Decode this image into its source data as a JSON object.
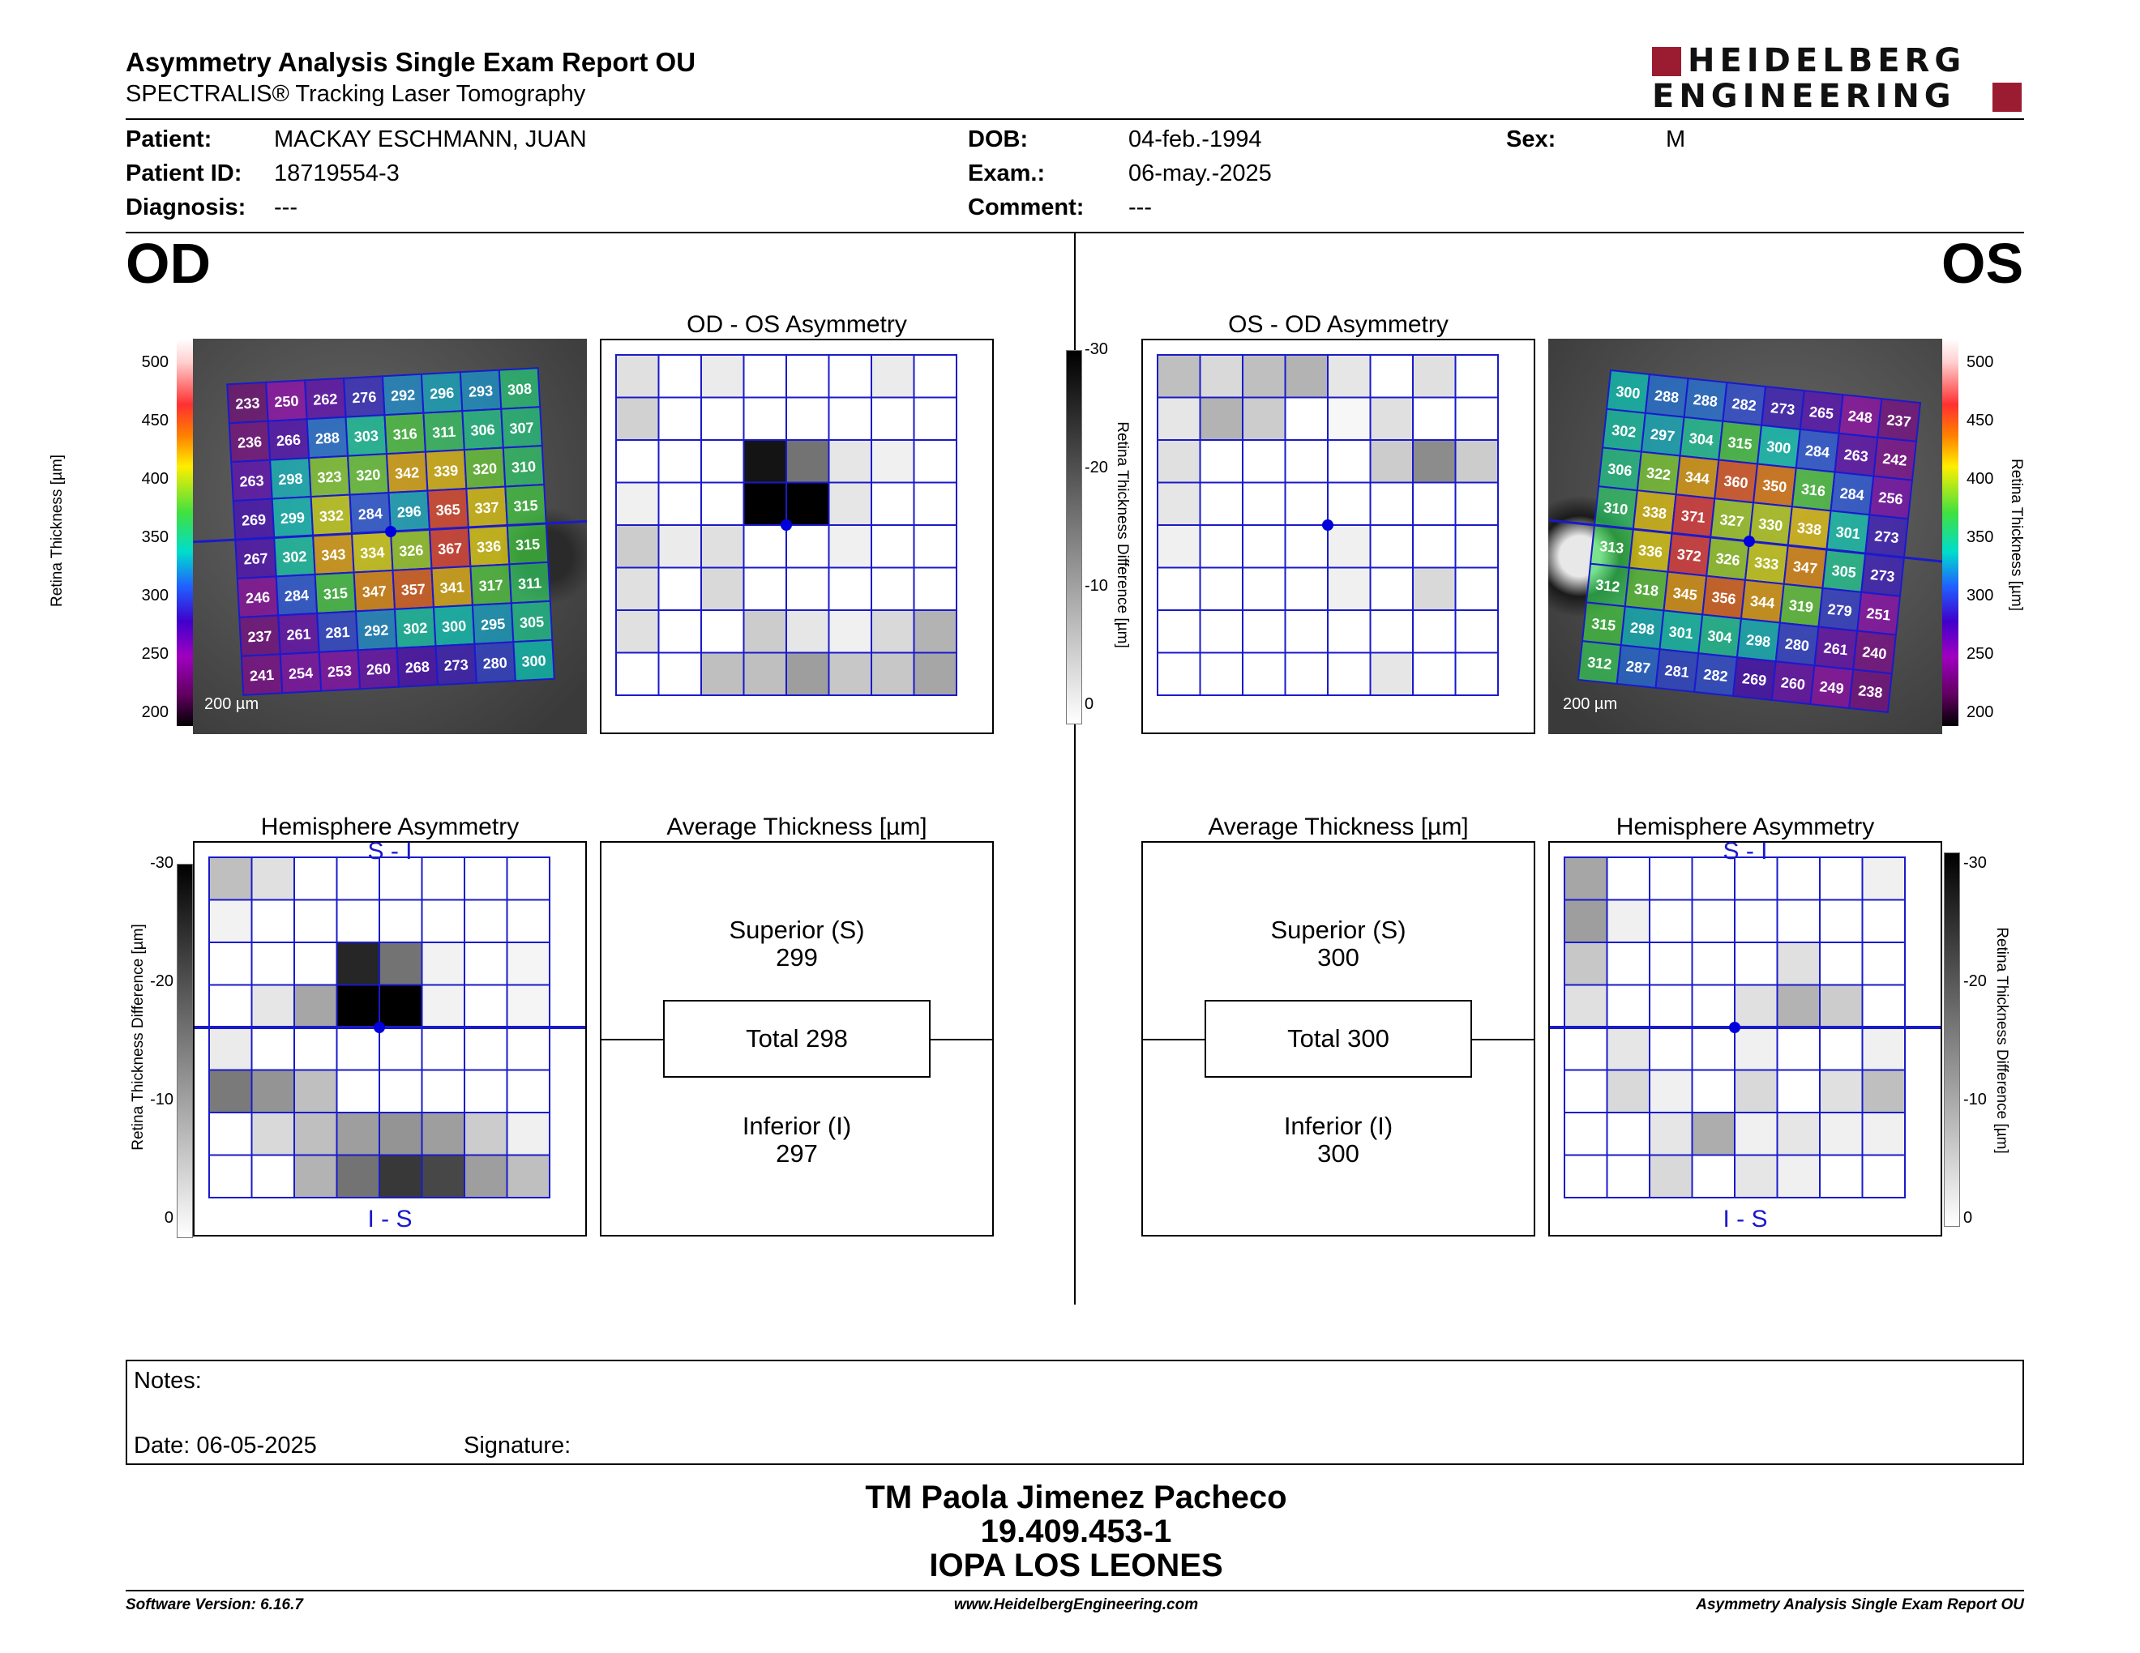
{
  "header": {
    "title": "Asymmetry Analysis Single Exam Report OU",
    "subtitle": "SPECTRALIS® Tracking Laser Tomography",
    "logo_line1": "HEIDELBERG",
    "logo_line2": "ENGINEERING",
    "brand_color": "#9b1c31"
  },
  "patient": {
    "patient_label": "Patient:",
    "patient_value": "MACKAY ESCHMANN, JUAN",
    "id_label": "Patient ID:",
    "id_value": "18719554-3",
    "diag_label": "Diagnosis:",
    "diag_value": "---",
    "dob_label": "DOB:",
    "dob_value": "04-feb.-1994",
    "exam_label": "Exam.:",
    "exam_value": "06-may.-2025",
    "comment_label": "Comment:",
    "comment_value": "---",
    "sex_label": "Sex:",
    "sex_value": "M"
  },
  "eyes": {
    "left": "OD",
    "right": "OS"
  },
  "titles": {
    "od_os": "OD - OS Asymmetry",
    "os_od": "OS - OD Asymmetry",
    "hemi": "Hemisphere Asymmetry",
    "avg": "Average Thickness [µm]",
    "s_i": "S - I",
    "i_s": "I - S",
    "scale_bar": "200 µm"
  },
  "axes": {
    "thickness_label": "Retina Thickness [µm]",
    "thickness_ticks": [
      "500",
      "450",
      "400",
      "350",
      "300",
      "250",
      "200"
    ],
    "diff_label": "Retina Thickness Difference [µm]",
    "diff_ticks": [
      "-30",
      "-20",
      "-10",
      "0"
    ]
  },
  "avg_od": {
    "sup_label": "Superior (S)",
    "sup_value": "299",
    "total": "Total 298",
    "inf_label": "Inferior (I)",
    "inf_value": "297"
  },
  "avg_os": {
    "sup_label": "Superior (S)",
    "sup_value": "300",
    "total": "Total 300",
    "inf_label": "Inferior (I)",
    "inf_value": "300"
  },
  "od_map": [
    [
      233,
      250,
      262,
      276,
      292,
      296,
      293,
      308
    ],
    [
      236,
      266,
      288,
      303,
      316,
      311,
      306,
      307
    ],
    [
      263,
      298,
      323,
      320,
      342,
      339,
      320,
      310
    ],
    [
      269,
      299,
      332,
      284,
      296,
      365,
      337,
      315
    ],
    [
      267,
      302,
      343,
      334,
      326,
      367,
      336,
      315
    ],
    [
      246,
      284,
      315,
      347,
      357,
      341,
      317,
      311
    ],
    [
      237,
      261,
      281,
      292,
      302,
      300,
      295,
      305
    ],
    [
      241,
      254,
      253,
      260,
      268,
      273,
      280,
      300
    ]
  ],
  "os_map": [
    [
      300,
      288,
      288,
      282,
      273,
      265,
      248,
      237
    ],
    [
      302,
      297,
      304,
      315,
      300,
      284,
      263,
      242
    ],
    [
      306,
      322,
      344,
      360,
      350,
      316,
      284,
      256
    ],
    [
      310,
      338,
      371,
      327,
      330,
      338,
      301,
      273
    ],
    [
      313,
      336,
      372,
      326,
      333,
      347,
      305,
      273
    ],
    [
      312,
      318,
      345,
      356,
      344,
      319,
      279,
      251
    ],
    [
      315,
      298,
      301,
      304,
      298,
      280,
      261,
      240
    ],
    [
      312,
      287,
      281,
      282,
      269,
      260,
      249,
      238
    ]
  ],
  "od_os_asym": [
    [
      0.12,
      0,
      0.08,
      0,
      0,
      0,
      0.08,
      0
    ],
    [
      0.18,
      0,
      0,
      0,
      0,
      0,
      0,
      0
    ],
    [
      0,
      0,
      0,
      0.92,
      0.55,
      0.1,
      0.06,
      0
    ],
    [
      0.06,
      0,
      0,
      1,
      1,
      0.1,
      0,
      0
    ],
    [
      0.2,
      0.08,
      0.12,
      0,
      0,
      0.06,
      0,
      0
    ],
    [
      0.12,
      0,
      0.15,
      0,
      0,
      0,
      0,
      0
    ],
    [
      0.12,
      0,
      0,
      0.2,
      0.1,
      0.06,
      0.15,
      0.3
    ],
    [
      0,
      0,
      0.25,
      0.25,
      0.38,
      0.22,
      0.22,
      0.35
    ]
  ],
  "os_od_asym": [
    [
      0.25,
      0.15,
      0.25,
      0.3,
      0.1,
      0,
      0.12,
      0
    ],
    [
      0.1,
      0.3,
      0.2,
      0,
      0.03,
      0.12,
      0,
      0
    ],
    [
      0.12,
      0,
      0,
      0,
      0,
      0.2,
      0.45,
      0.2
    ],
    [
      0.1,
      0,
      0,
      0,
      0,
      0,
      0,
      0
    ],
    [
      0.06,
      0,
      0,
      0,
      0.06,
      0,
      0,
      0
    ],
    [
      0,
      0,
      0,
      0,
      0.06,
      0,
      0.15,
      0
    ],
    [
      0,
      0,
      0,
      0,
      0,
      0,
      0,
      0
    ],
    [
      0,
      0,
      0,
      0,
      0,
      0.1,
      0,
      0
    ]
  ],
  "od_hemi": [
    [
      0.25,
      0.12,
      0,
      0,
      0,
      0,
      0,
      0
    ],
    [
      0.05,
      0,
      0,
      0,
      0,
      0,
      0,
      0
    ],
    [
      0,
      0,
      0,
      0.85,
      0.55,
      0.05,
      0,
      0.04
    ],
    [
      0,
      0.1,
      0.35,
      1,
      1,
      0.05,
      0,
      0.04
    ],
    [
      0.08,
      0,
      0,
      0,
      0,
      0,
      0,
      0
    ],
    [
      0.52,
      0.42,
      0.25,
      0,
      0,
      0,
      0,
      0
    ],
    [
      0,
      0.15,
      0.25,
      0.38,
      0.42,
      0.38,
      0.2,
      0.06
    ],
    [
      0,
      0,
      0.3,
      0.55,
      0.78,
      0.72,
      0.38,
      0.25
    ]
  ],
  "os_hemi": [
    [
      0.35,
      0,
      0,
      0,
      0,
      0,
      0,
      0.06
    ],
    [
      0.38,
      0.06,
      0,
      0,
      0,
      0,
      0,
      0
    ],
    [
      0.22,
      0,
      0,
      0,
      0,
      0.12,
      0,
      0
    ],
    [
      0.12,
      0,
      0,
      0,
      0.12,
      0.3,
      0.2,
      0
    ],
    [
      0,
      0.1,
      0,
      0,
      0.06,
      0,
      0,
      0.06
    ],
    [
      0,
      0.15,
      0.06,
      0,
      0.15,
      0,
      0.12,
      0.25
    ],
    [
      0,
      0,
      0.1,
      0.32,
      0.06,
      0.1,
      0.06,
      0.06
    ],
    [
      0,
      0,
      0.15,
      0,
      0.1,
      0.06,
      0,
      0
    ]
  ],
  "notes": {
    "notes_label": "Notes:",
    "date_label": "Date: 06-05-2025",
    "signature_label": "Signature:"
  },
  "signature": {
    "name": "TM Paola Jimenez Pacheco",
    "id": "19.409.453-1",
    "org": "IOPA LOS LEONES"
  },
  "footer": {
    "left": "Software Version: 6.16.7",
    "center": "www.HeidelbergEngineering.com",
    "right": "Asymmetry Analysis Single Exam Report OU"
  },
  "colors": {
    "grid_blue": "#1a1acc",
    "dot_blue": "#0000dd"
  }
}
